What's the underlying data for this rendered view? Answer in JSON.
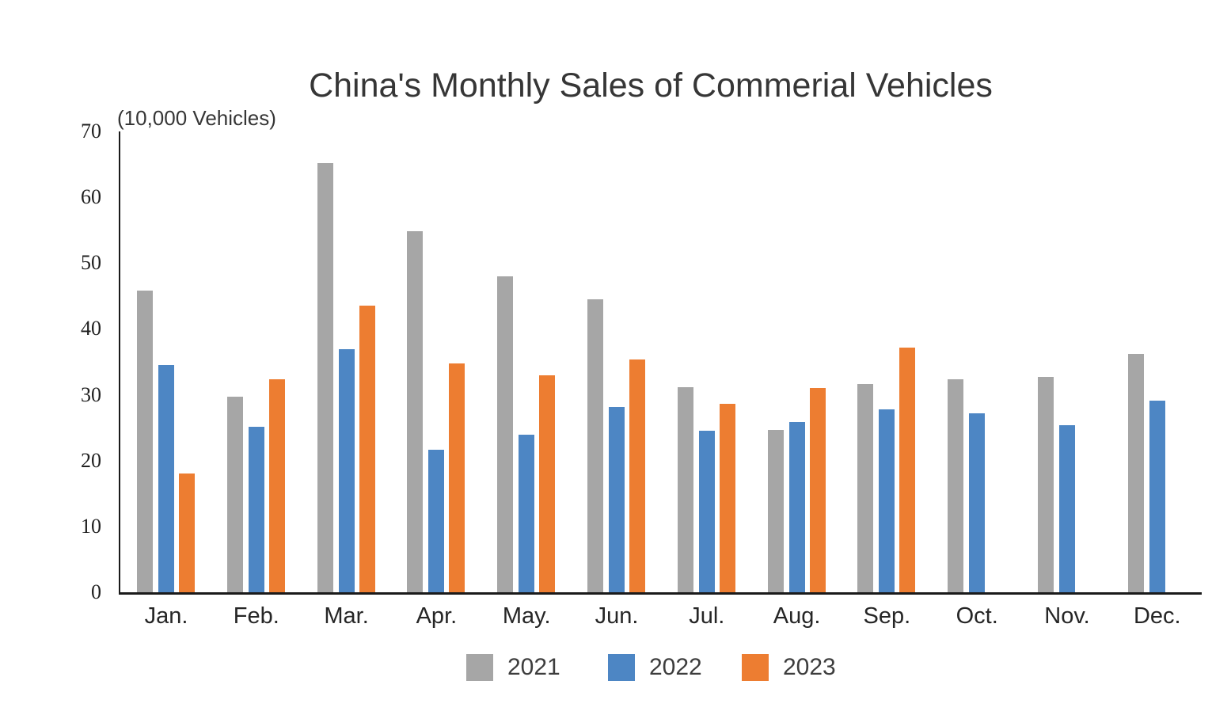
{
  "header": {
    "title": "China's Monthly Sales of Commerial Vehicles",
    "units_note": "(10,000 Vehicles)"
  },
  "chart_data": {
    "type": "bar",
    "title": "China's Monthly Sales of Commerial Vehicles",
    "units_label": "(10,000 Vehicles)",
    "categories": [
      "Jan.",
      "Feb.",
      "Mar.",
      "Apr.",
      "May.",
      "Jun.",
      "Jul.",
      "Aug.",
      "Sep.",
      "Oct.",
      "Nov.",
      "Dec."
    ],
    "series": [
      {
        "name": "2021",
        "color": "#a6a6a6",
        "values": [
          45.8,
          29.7,
          65.2,
          54.8,
          48.0,
          44.5,
          31.1,
          24.7,
          31.6,
          32.4,
          32.7,
          36.2
        ]
      },
      {
        "name": "2022",
        "color": "#4d86c4",
        "values": [
          34.5,
          25.1,
          36.9,
          21.6,
          23.9,
          28.1,
          24.5,
          25.9,
          27.8,
          27.2,
          25.4,
          29.1
        ]
      },
      {
        "name": "2023",
        "color": "#ed7d31",
        "values": [
          18.0,
          32.3,
          43.5,
          34.8,
          32.9,
          35.4,
          28.6,
          31.0,
          37.2,
          null,
          null,
          null
        ]
      }
    ],
    "ylim": [
      0,
      70
    ],
    "yticks": [
      0,
      10,
      20,
      30,
      40,
      50,
      60,
      70
    ],
    "xlabel": "",
    "ylabel": "",
    "grid": false,
    "legend_position": "bottom",
    "axis_color": "#1a1a1a",
    "background_color": "#ffffff"
  }
}
